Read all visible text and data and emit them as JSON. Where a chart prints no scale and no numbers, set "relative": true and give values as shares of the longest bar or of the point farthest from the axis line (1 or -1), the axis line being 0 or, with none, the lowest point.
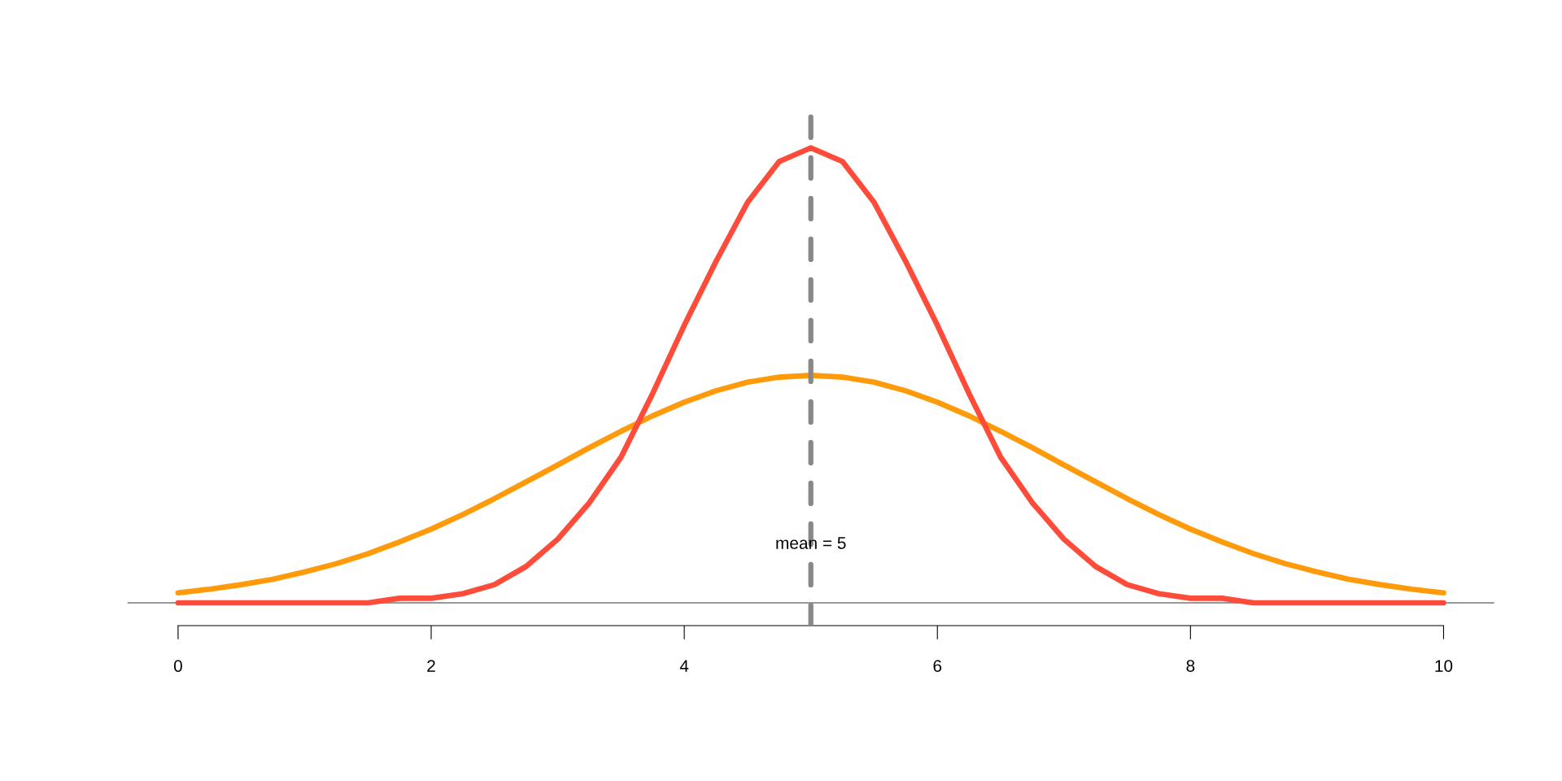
{
  "chart_data": {
    "type": "line",
    "relative": true,
    "x": [
      0,
      0.25,
      0.5,
      0.75,
      1,
      1.25,
      1.5,
      1.75,
      2,
      2.25,
      2.5,
      2.75,
      3,
      3.25,
      3.5,
      3.75,
      4,
      4.25,
      4.5,
      4.75,
      5,
      5.25,
      5.5,
      5.75,
      6,
      6.25,
      6.5,
      6.75,
      7,
      7.25,
      7.5,
      7.75,
      8,
      8.25,
      8.5,
      8.75,
      9,
      9.25,
      9.5,
      9.75,
      10
    ],
    "series": [
      {
        "color": "#ff4b3a",
        "values": [
          0,
          0,
          0,
          0,
          0,
          0,
          0,
          0.01,
          0.01,
          0.02,
          0.04,
          0.08,
          0.14,
          0.22,
          0.32,
          0.46,
          0.61,
          0.75,
          0.88,
          0.97,
          1,
          0.97,
          0.88,
          0.75,
          0.61,
          0.46,
          0.32,
          0.22,
          0.14,
          0.08,
          0.04,
          0.02,
          0.01,
          0.01,
          0,
          0,
          0,
          0,
          0,
          0,
          0
        ]
      },
      {
        "color": "#ff9a0a",
        "values": [
          0.022,
          0.03,
          0.04,
          0.052,
          0.068,
          0.086,
          0.108,
          0.134,
          0.162,
          0.194,
          0.229,
          0.266,
          0.303,
          0.341,
          0.377,
          0.411,
          0.441,
          0.466,
          0.485,
          0.496,
          0.5,
          0.496,
          0.485,
          0.466,
          0.441,
          0.411,
          0.377,
          0.341,
          0.303,
          0.266,
          0.229,
          0.194,
          0.162,
          0.134,
          0.108,
          0.086,
          0.068,
          0.052,
          0.04,
          0.03,
          0.022
        ]
      }
    ],
    "xlim": [
      -0.4,
      10.4
    ],
    "xticks": [
      0,
      2,
      4,
      6,
      8,
      10
    ],
    "ref_lines": [
      {
        "axis": "x",
        "value": 5,
        "label": "mean = 5",
        "color": "#888888",
        "line_style": "dashed"
      }
    ],
    "grid": false,
    "legend": false,
    "line_style": "solid",
    "marker": "none"
  }
}
